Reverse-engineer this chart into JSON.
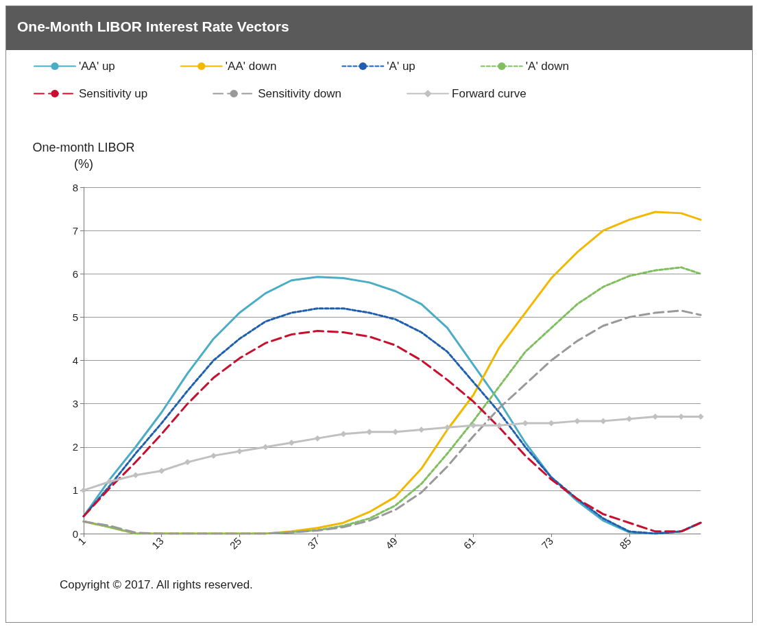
{
  "chart_data": {
    "type": "line",
    "title": "One-Month LIBOR Interest Rate Vectors",
    "ylabel": "One-month LIBOR\n(%)",
    "x": [
      1,
      5,
      9,
      13,
      17,
      21,
      25,
      29,
      33,
      37,
      41,
      45,
      49,
      53,
      57,
      61,
      65,
      69,
      73,
      77,
      81,
      85,
      89,
      93,
      96
    ],
    "xlim": [
      1,
      96
    ],
    "xticks": [
      1,
      13,
      25,
      37,
      49,
      61,
      73,
      85
    ],
    "ylim": [
      0,
      8
    ],
    "yticks": [
      0,
      1,
      2,
      3,
      4,
      5,
      6,
      7,
      8
    ],
    "grid": "y",
    "legend": "top",
    "series": [
      {
        "name": "'AA' up",
        "color": "#4bacc6",
        "line_style": "solid",
        "marker": "none",
        "values": [
          0.4,
          1.25,
          2.0,
          2.8,
          3.7,
          4.5,
          5.1,
          5.55,
          5.85,
          5.93,
          5.9,
          5.8,
          5.6,
          5.3,
          4.75,
          3.9,
          3.05,
          2.1,
          1.3,
          0.75,
          0.3,
          0.03,
          0.0,
          0.05,
          0.25
        ]
      },
      {
        "name": "'AA' down",
        "color": "#f2b800",
        "line_style": "solid",
        "marker": "none",
        "values": [
          0.28,
          0.15,
          0.0,
          0.0,
          0.0,
          0.0,
          0.0,
          0.0,
          0.05,
          0.13,
          0.25,
          0.5,
          0.85,
          1.5,
          2.4,
          3.2,
          4.3,
          5.1,
          5.9,
          6.5,
          7.0,
          7.25,
          7.43,
          7.4,
          7.25
        ]
      },
      {
        "name": "'A' up",
        "color": "#1f5fae",
        "line_style": "dotted",
        "marker": "none",
        "values": [
          0.4,
          1.1,
          1.85,
          2.55,
          3.3,
          4.0,
          4.5,
          4.9,
          5.1,
          5.2,
          5.2,
          5.1,
          4.95,
          4.65,
          4.2,
          3.5,
          2.8,
          2.0,
          1.3,
          0.8,
          0.35,
          0.05,
          0.0,
          0.05,
          0.25
        ]
      },
      {
        "name": "'A' down",
        "color": "#7fbf5f",
        "line_style": "dotted",
        "marker": "none",
        "values": [
          0.28,
          0.15,
          0.0,
          0.0,
          0.0,
          0.0,
          0.0,
          0.0,
          0.03,
          0.08,
          0.18,
          0.35,
          0.65,
          1.15,
          1.85,
          2.6,
          3.4,
          4.2,
          4.75,
          5.3,
          5.7,
          5.95,
          6.08,
          6.15,
          6.0
        ]
      },
      {
        "name": "Sensitivity up",
        "color": "#c8102e",
        "line_style": "dashed",
        "marker": "none",
        "values": [
          0.4,
          1.05,
          1.65,
          2.3,
          3.0,
          3.6,
          4.05,
          4.4,
          4.6,
          4.68,
          4.65,
          4.55,
          4.35,
          4.0,
          3.55,
          3.05,
          2.45,
          1.8,
          1.25,
          0.8,
          0.45,
          0.25,
          0.05,
          0.05,
          0.25
        ]
      },
      {
        "name": "Sensitivity down",
        "color": "#999999",
        "line_style": "dashed",
        "marker": "none",
        "values": [
          0.28,
          0.18,
          0.02,
          0.0,
          0.0,
          0.0,
          0.0,
          0.0,
          0.03,
          0.07,
          0.15,
          0.3,
          0.55,
          0.95,
          1.55,
          2.25,
          2.9,
          3.45,
          4.0,
          4.45,
          4.8,
          5.0,
          5.1,
          5.15,
          5.05
        ]
      },
      {
        "name": "Forward curve",
        "color": "#c0c0c0",
        "line_style": "solid",
        "marker": "diamond",
        "values": [
          1.0,
          1.2,
          1.35,
          1.45,
          1.65,
          1.8,
          1.9,
          2.0,
          2.1,
          2.2,
          2.3,
          2.35,
          2.35,
          2.4,
          2.45,
          2.5,
          2.5,
          2.55,
          2.55,
          2.6,
          2.6,
          2.65,
          2.7,
          2.7,
          2.7
        ]
      }
    ],
    "annotations": [
      "Copyright © 2017. All rights reserved."
    ]
  }
}
